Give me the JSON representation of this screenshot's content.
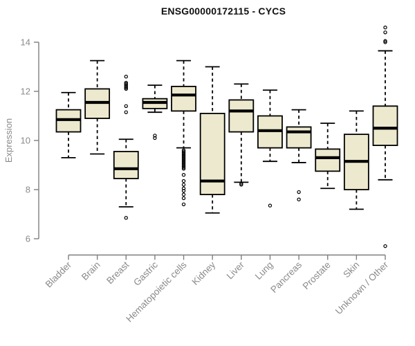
{
  "chart_data": {
    "type": "box",
    "title": "ENSG00000172115 - CYCS",
    "ylabel": "Expression",
    "xlabel": "",
    "ylim": [
      6,
      14
    ],
    "yticks": [
      6,
      8,
      10,
      12,
      14
    ],
    "grid": false,
    "legend": null,
    "colors": {
      "box_fill": "#EDE9CE",
      "box_stroke": "#000000",
      "median": "#000000",
      "axis_line": "#7e7e7e",
      "tick_label": "#8a8a8a",
      "title": "#111111"
    },
    "boxes": [
      {
        "label": "Bladder",
        "low": 9.3,
        "q1": 10.35,
        "median": 10.85,
        "q3": 11.25,
        "high": 11.95,
        "outliers": []
      },
      {
        "label": "Brain",
        "low": 9.45,
        "q1": 10.9,
        "median": 11.55,
        "q3": 12.1,
        "high": 13.25,
        "outliers": []
      },
      {
        "label": "Breast",
        "low": 7.3,
        "q1": 8.45,
        "median": 8.85,
        "q3": 9.55,
        "high": 10.05,
        "outliers": [
          12.6,
          12.35,
          12.3,
          12.25,
          12.2,
          12.15,
          12.1,
          11.4,
          11.15,
          6.85
        ]
      },
      {
        "label": "Gastric",
        "low": 11.15,
        "q1": 11.3,
        "median": 11.55,
        "q3": 11.7,
        "high": 12.25,
        "outliers": [
          10.2,
          10.1
        ]
      },
      {
        "label": "Hematopoietic cells",
        "low": 9.7,
        "q1": 11.2,
        "median": 11.85,
        "q3": 12.2,
        "high": 13.25,
        "outliers": [
          9.6,
          9.55,
          9.5,
          9.45,
          9.4,
          9.35,
          9.3,
          9.25,
          9.2,
          9.15,
          9.1,
          9.05,
          9.0,
          8.95,
          8.9,
          8.85,
          8.6,
          8.35,
          8.2,
          8.05,
          7.95,
          7.8,
          7.65,
          7.4
        ]
      },
      {
        "label": "Kidney",
        "low": 7.05,
        "q1": 7.8,
        "median": 8.35,
        "q3": 11.1,
        "high": 13.0,
        "outliers": []
      },
      {
        "label": "Liver",
        "low": 8.3,
        "q1": 10.35,
        "median": 11.2,
        "q3": 11.65,
        "high": 12.3,
        "outliers": [
          8.25,
          8.2
        ]
      },
      {
        "label": "Lung",
        "low": 9.15,
        "q1": 9.7,
        "median": 10.4,
        "q3": 11.0,
        "high": 12.05,
        "outliers": [
          7.35
        ]
      },
      {
        "label": "Pancreas",
        "low": 9.1,
        "q1": 9.7,
        "median": 10.35,
        "q3": 10.55,
        "high": 11.25,
        "outliers": [
          7.9,
          7.6
        ]
      },
      {
        "label": "Prostate",
        "low": 8.05,
        "q1": 8.75,
        "median": 9.3,
        "q3": 9.65,
        "high": 10.7,
        "outliers": []
      },
      {
        "label": "Skin",
        "low": 7.2,
        "q1": 8.0,
        "median": 9.15,
        "q3": 10.25,
        "high": 11.2,
        "outliers": []
      },
      {
        "label": "Unknown / Other",
        "low": 8.4,
        "q1": 9.8,
        "median": 10.5,
        "q3": 11.4,
        "high": 13.65,
        "outliers": [
          14.6,
          14.4,
          14.05,
          14.0,
          5.7
        ]
      }
    ]
  }
}
